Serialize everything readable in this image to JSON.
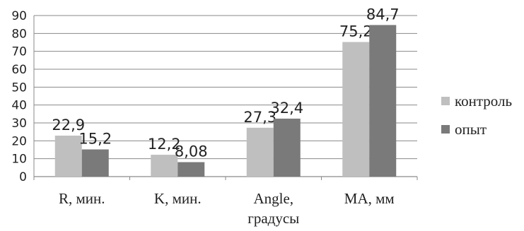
{
  "chart_data": {
    "type": "bar",
    "categories": [
      [
        "R, мин."
      ],
      [
        "K, мин."
      ],
      [
        "Angle,",
        "градусы"
      ],
      [
        "MA, мм"
      ]
    ],
    "series": [
      {
        "name": "контроль",
        "values": [
          22.9,
          12.2,
          27.3,
          75.2
        ],
        "labels": [
          "22,9",
          "12,2",
          "27,3",
          "75,2"
        ],
        "color": "#bfbfbf"
      },
      {
        "name": "опыт",
        "values": [
          15.2,
          8.08,
          32.4,
          84.7
        ],
        "labels": [
          "15,2",
          "8,08",
          "32,4",
          "84,7"
        ],
        "color": "#7a7a7a"
      }
    ],
    "ylim": [
      0,
      90
    ],
    "yticks": [
      0,
      10,
      20,
      30,
      40,
      50,
      60,
      70,
      80,
      90
    ],
    "grid": true,
    "legend_position": "right",
    "title": "",
    "xlabel": "",
    "ylabel": ""
  }
}
